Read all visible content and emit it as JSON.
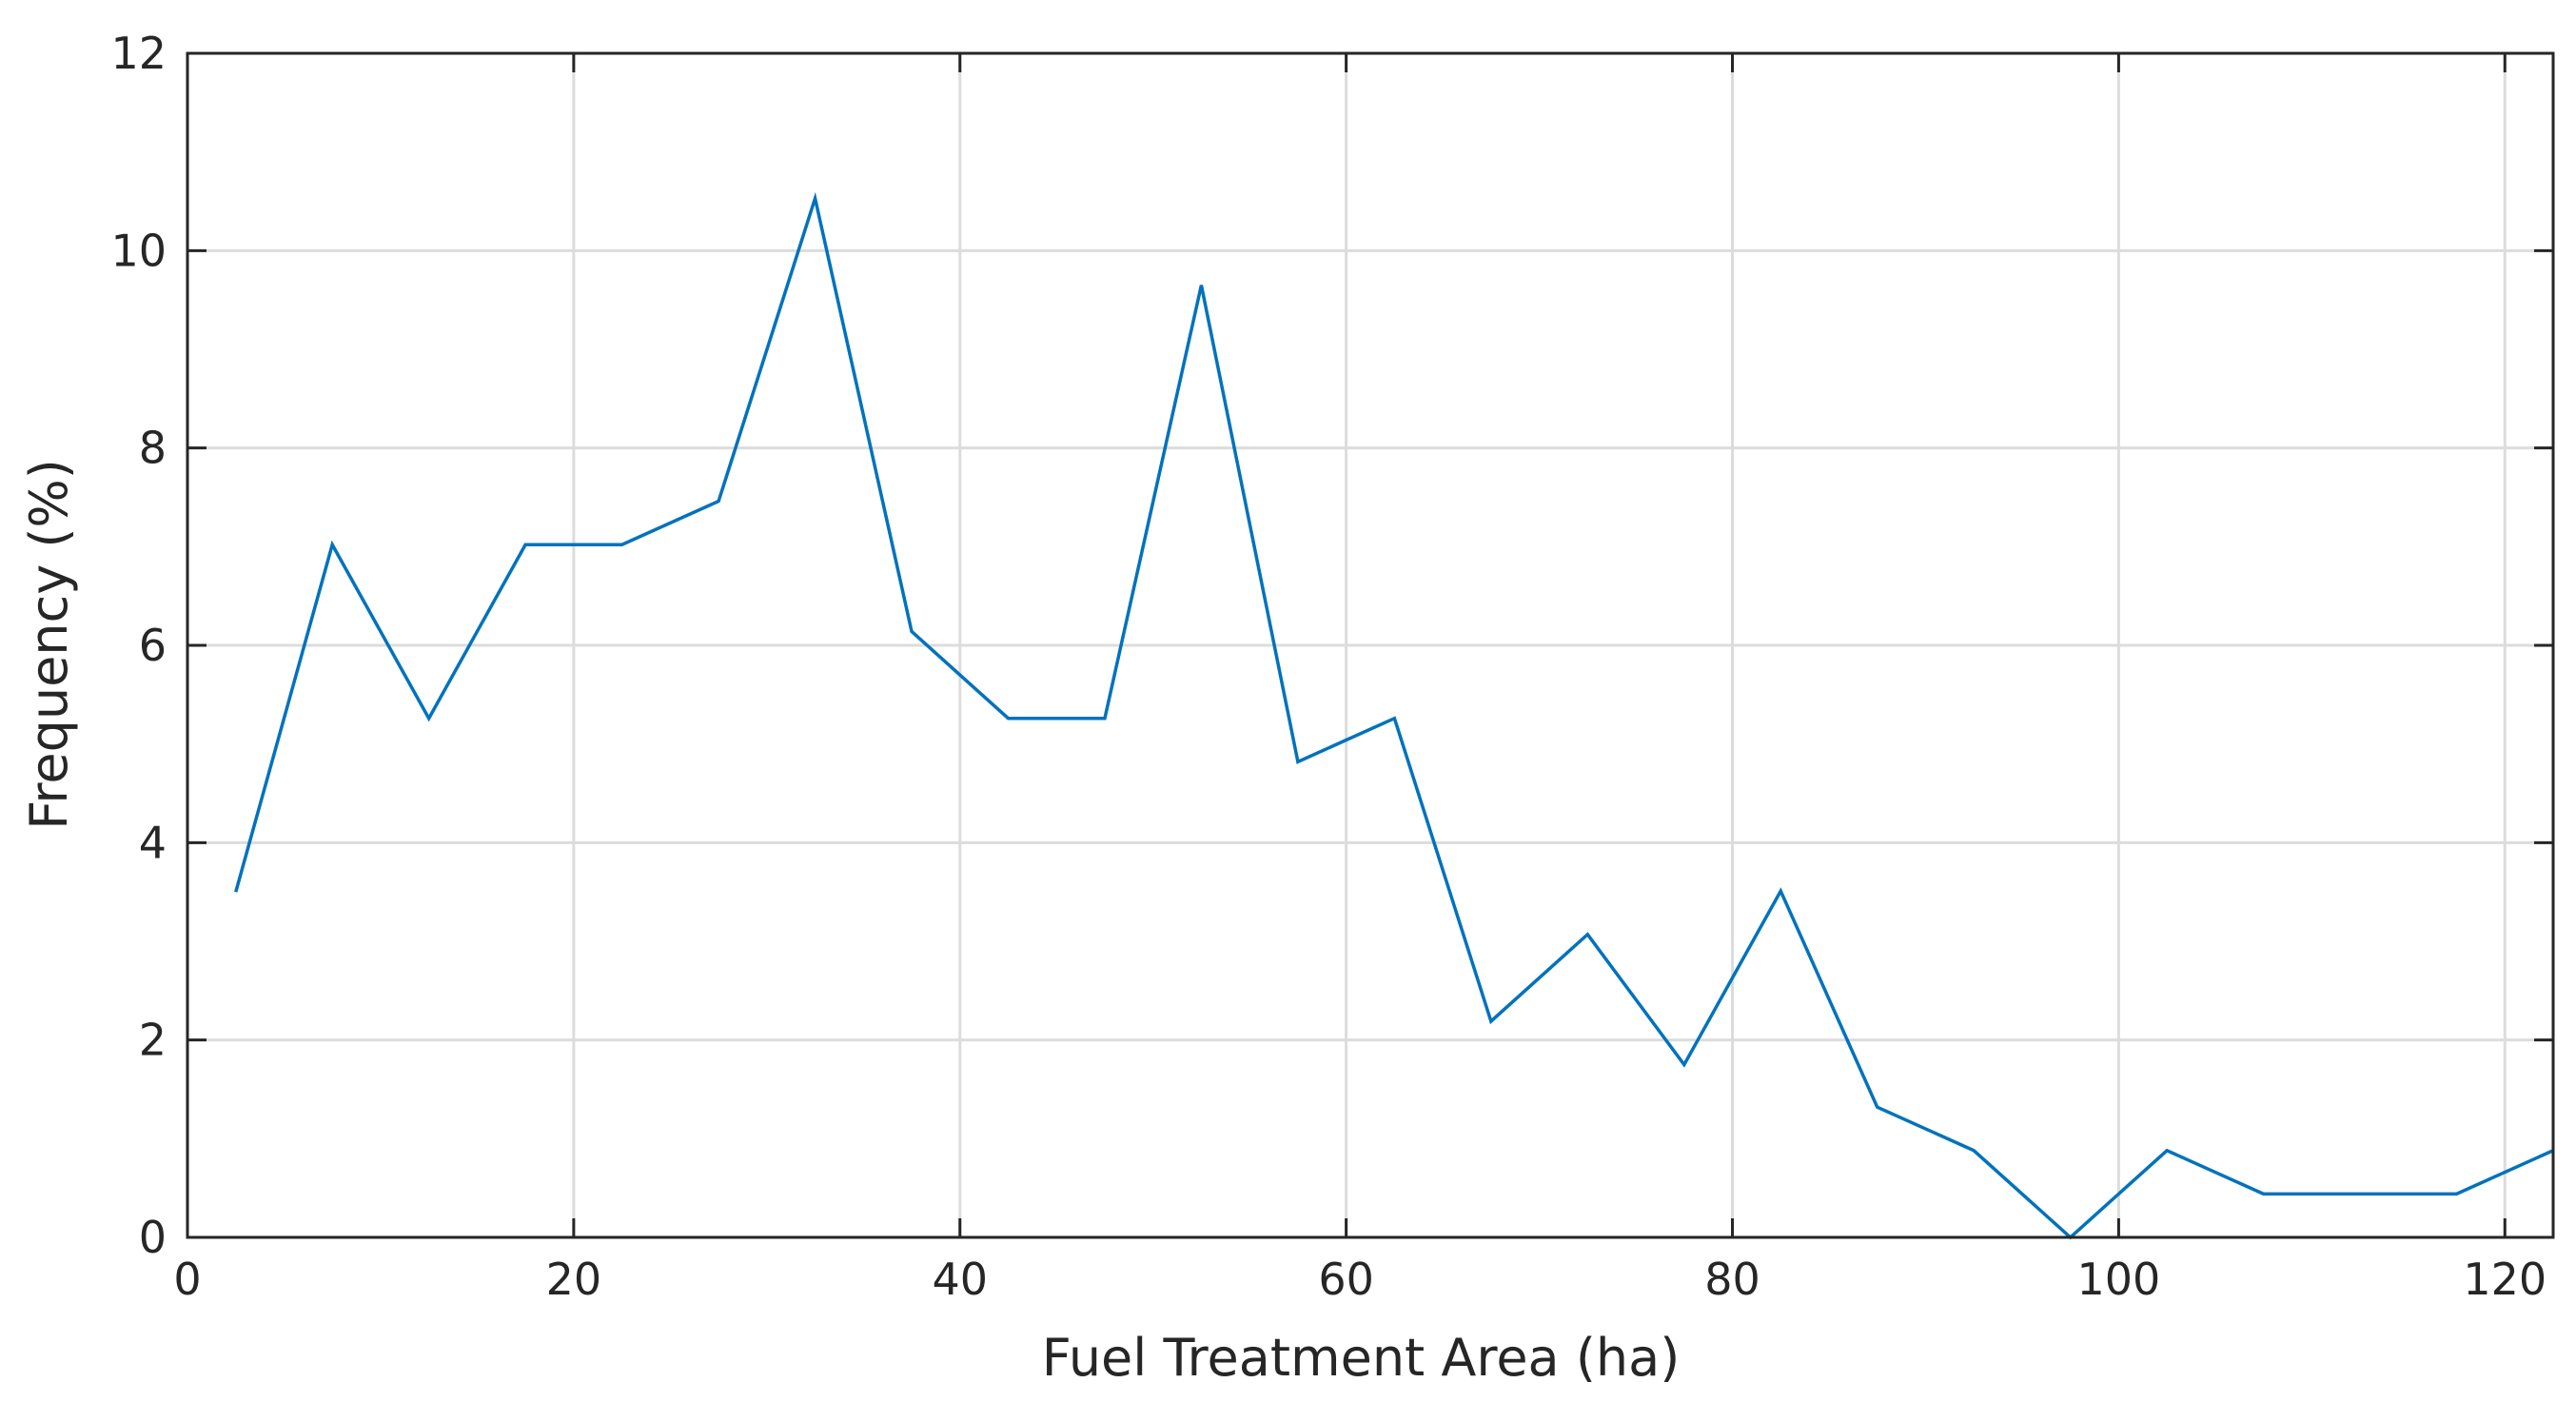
{
  "chart_data": {
    "type": "line",
    "title": "",
    "xlabel": "Fuel Treatment Area (ha)",
    "ylabel": "Frequency (%)",
    "xlim": [
      0,
      122.5
    ],
    "ylim": [
      0,
      12
    ],
    "xticks": [
      0,
      20,
      40,
      60,
      80,
      100,
      120
    ],
    "yticks": [
      0,
      2,
      4,
      6,
      8,
      10,
      12
    ],
    "grid": true,
    "legend": "none",
    "series_color": "#0072BD",
    "series": [
      {
        "x": [
          2.5,
          7.5,
          12.5,
          17.5,
          22.5,
          27.5,
          32.5,
          37.5,
          42.5,
          47.5,
          52.5,
          57.5,
          62.5,
          67.5,
          72.5,
          77.5,
          82.5,
          87.5,
          92.5,
          97.5,
          102.5,
          107.5,
          112.5,
          117.5,
          122.5
        ],
        "values": [
          3.5,
          7.02,
          5.26,
          7.02,
          7.02,
          7.46,
          10.53,
          6.14,
          5.26,
          5.26,
          9.65,
          4.82,
          5.26,
          2.19,
          3.07,
          1.75,
          3.51,
          1.32,
          0.88,
          0.0,
          0.88,
          0.44,
          0.44,
          0.44,
          0.88
        ]
      }
    ]
  }
}
